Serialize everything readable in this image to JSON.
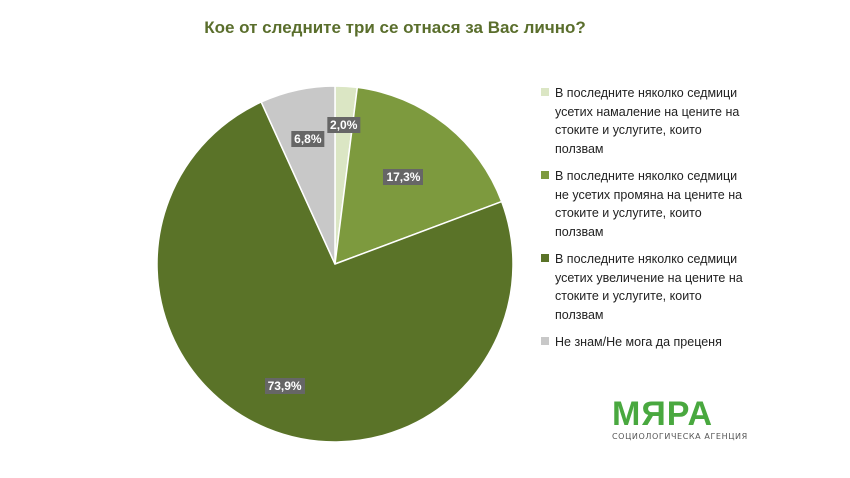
{
  "chart_data": {
    "type": "pie",
    "title": "Кое от следните три се отнася за Вас лично?",
    "slices": [
      {
        "label": "В последните няколко седмици усетих намаление на цените на стоките и услугите, които ползвам",
        "value": 2.0,
        "value_label": "2,0%",
        "color": "#dbe6c4"
      },
      {
        "label": "В последните няколко седмици не усетих промяна на цените на стоките и услугите, които ползвам",
        "value": 17.3,
        "value_label": "17,3%",
        "color": "#7d9a3e"
      },
      {
        "label": "В последните няколко седмици усетих увеличение на цените на стоките и услугите, които ползвам",
        "value": 73.9,
        "value_label": "73,9%",
        "color": "#5a7328"
      },
      {
        "label": "Не знам/Не мога да преценя",
        "value": 6.8,
        "value_label": "6,8%",
        "color": "#c8c8c8"
      }
    ],
    "start": "12 o'clock",
    "direction": "clockwise",
    "legend_position": "right"
  },
  "logo": {
    "name": "МЯРА",
    "subtitle": "СОЦИОЛОГИЧЕСКА АГЕНЦИЯ"
  }
}
